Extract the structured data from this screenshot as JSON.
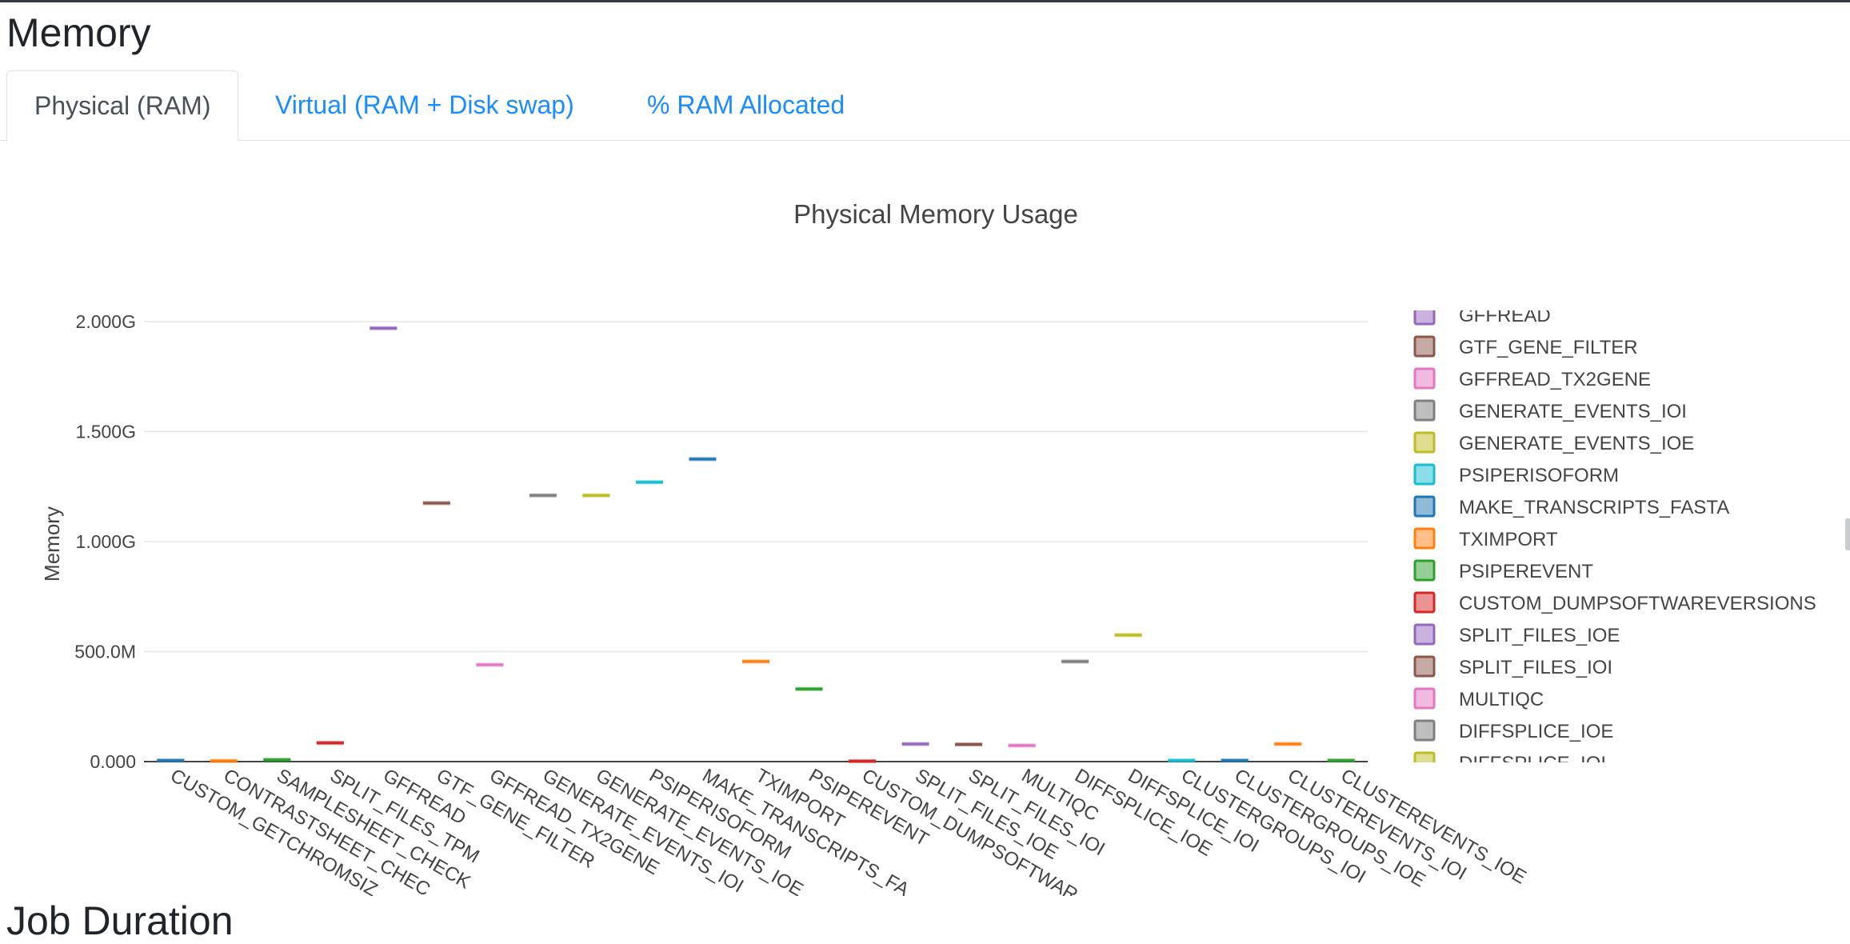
{
  "sections": {
    "memory_title": "Memory",
    "next_title": "Job Duration"
  },
  "tabs": [
    {
      "label": "Physical (RAM)",
      "active": true
    },
    {
      "label": "Virtual (RAM + Disk swap)",
      "active": false
    },
    {
      "label": "% RAM Allocated",
      "active": false
    }
  ],
  "colors": {
    "accent": "#1a8cff",
    "palette": [
      "#1f77b4",
      "#ff7f0e",
      "#2ca02c",
      "#d62728",
      "#9467bd",
      "#8c564b",
      "#e377c2",
      "#7f7f7f",
      "#bcbd22",
      "#17becf"
    ]
  },
  "chart_data": {
    "type": "box",
    "title": "Physical Memory Usage",
    "ylabel": "Memory",
    "ylim": [
      0,
      2.25
    ],
    "y_unit": "G",
    "y_ticks": [
      {
        "value": 0,
        "label": "0.000"
      },
      {
        "value": 0.5,
        "label": "500.0M"
      },
      {
        "value": 1.0,
        "label": "1.000G"
      },
      {
        "value": 1.5,
        "label": "1.500G"
      },
      {
        "value": 2.0,
        "label": "2.000G"
      }
    ],
    "grid": true,
    "legend_position": "right",
    "categories": [
      "CUSTOM_GETCHROMSIZES",
      "CONTRASTSHEET_CHECK",
      "SAMPLESHEET_CHECK",
      "SPLIT_FILES_TPM",
      "GFFREAD",
      "GTF_GENE_FILTER",
      "GFFREAD_TX2GENE",
      "GENERATE_EVENTS_IOI",
      "GENERATE_EVENTS_IOE",
      "PSIPERISOFORM",
      "MAKE_TRANSCRIPTS_FASTA",
      "TXIMPORT",
      "PSIPEREVENT",
      "CUSTOM_DUMPSOFTWAREVERSIONS",
      "SPLIT_FILES_IOE",
      "SPLIT_FILES_IOI",
      "MULTIQC",
      "DIFFSPLICE_IOE",
      "DIFFSPLICE_IOI",
      "CLUSTERGROUPS_IOI",
      "CLUSTERGROUPS_IOE",
      "CLUSTEREVENTS_IOI",
      "CLUSTEREVENTS_IOE"
    ],
    "tick_labels": [
      "CUSTOM_GETCHROMSIZ",
      "CONTRASTSHEET_CHEC",
      "SAMPLESHEET_CHECK",
      "SPLIT_FILES_TPM",
      "GFFREAD",
      "GTF_GENE_FILTER",
      "GFFREAD_TX2GENE",
      "GENERATE_EVENTS_IOI",
      "GENERATE_EVENTS_IOE",
      "PSIPERISOFORM",
      "MAKE_TRANSCRIPTS_FA",
      "TXIMPORT",
      "PSIPEREVENT",
      "CUSTOM_DUMPSOFTWAR",
      "SPLIT_FILES_IOE",
      "SPLIT_FILES_IOI",
      "MULTIQC",
      "DIFFSPLICE_IOE",
      "DIFFSPLICE_IOI",
      "CLUSTERGROUPS_IOI",
      "CLUSTERGROUPS_IOE",
      "CLUSTEREVENTS_IOI",
      "CLUSTEREVENTS_IOE"
    ],
    "values": [
      0.005,
      0.003,
      0.008,
      0.085,
      1.97,
      1.175,
      0.44,
      1.21,
      1.21,
      1.27,
      1.375,
      0.455,
      0.33,
      0.002,
      0.08,
      0.078,
      0.073,
      0.455,
      0.575,
      0.005,
      0.005,
      0.08,
      0.005
    ],
    "legend_visible": [
      "GFFREAD",
      "GTF_GENE_FILTER",
      "GFFREAD_TX2GENE",
      "GENERATE_EVENTS_IOI",
      "GENERATE_EVENTS_IOE",
      "PSIPERISOFORM",
      "MAKE_TRANSCRIPTS_FASTA",
      "TXIMPORT",
      "PSIPEREVENT",
      "CUSTOM_DUMPSOFTWAREVERSIONS",
      "SPLIT_FILES_IOE",
      "SPLIT_FILES_IOI",
      "MULTIQC",
      "DIFFSPLICE_IOE",
      "DIFFSPLICE_IOI"
    ]
  }
}
